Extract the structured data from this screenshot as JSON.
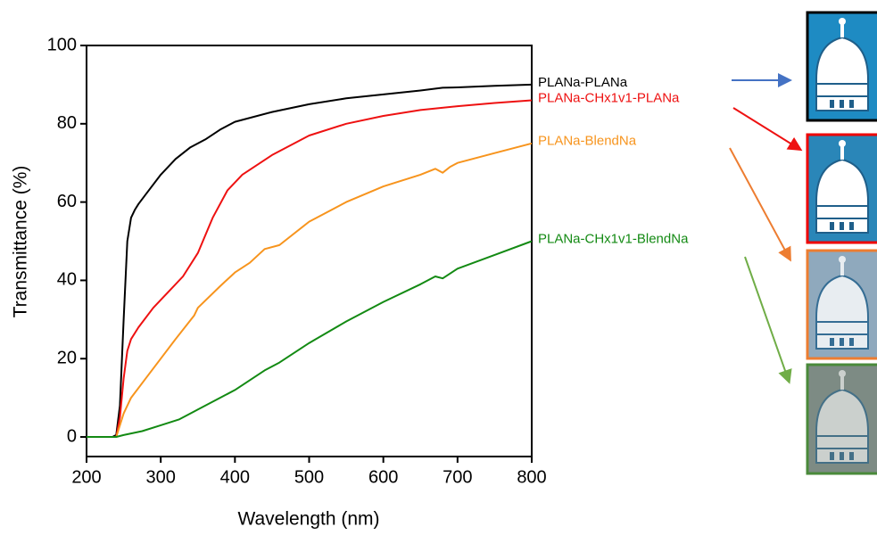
{
  "chart_data": {
    "type": "line",
    "x_label": "Wavelength (nm)",
    "y_label": "Transmittance (%)",
    "xlim": [
      200,
      800
    ],
    "xticks": [
      200,
      300,
      400,
      500,
      600,
      700,
      800
    ],
    "ylim": [
      -5,
      100
    ],
    "yticks": [
      0,
      20,
      40,
      60,
      80,
      100
    ],
    "series": [
      {
        "name": "PLANa-PLANa",
        "color": "#000000",
        "x": [
          200,
          235,
          240,
          245,
          250,
          255,
          260,
          265,
          270,
          280,
          300,
          320,
          340,
          360,
          380,
          400,
          450,
          500,
          550,
          600,
          650,
          680,
          700,
          750,
          800
        ],
        "values": [
          0,
          0,
          0.5,
          8,
          30,
          50,
          56,
          58,
          59.5,
          62,
          67,
          71,
          74,
          76,
          78.5,
          80.5,
          83,
          85,
          86.5,
          87.5,
          88.5,
          89.2,
          89.3,
          89.7,
          90
        ]
      },
      {
        "name": "PLANa-CHx1v1-PLANa",
        "color": "#ee1111",
        "x": [
          200,
          240,
          245,
          250,
          255,
          260,
          270,
          290,
          310,
          330,
          350,
          370,
          390,
          410,
          450,
          500,
          550,
          600,
          650,
          700,
          750,
          800
        ],
        "values": [
          0,
          0,
          5,
          15,
          22,
          25,
          28,
          33,
          37,
          41,
          47,
          56,
          63,
          67,
          72,
          77,
          80,
          82,
          83.5,
          84.5,
          85.3,
          86
        ]
      },
      {
        "name": "PLANa-BlendNa",
        "color": "#f7941d",
        "x": [
          200,
          240,
          245,
          250,
          260,
          280,
          300,
          320,
          345,
          350,
          380,
          400,
          420,
          440,
          460,
          500,
          550,
          600,
          650,
          670,
          680,
          690,
          700,
          750,
          800
        ],
        "values": [
          0,
          0,
          3,
          6,
          10,
          15,
          20,
          25,
          31,
          33,
          38.5,
          42,
          44.5,
          48,
          49,
          55,
          60,
          64,
          67,
          68.5,
          67.5,
          69,
          70,
          72.5,
          75
        ]
      },
      {
        "name": "PLANa-CHx1v1-BlendNa",
        "color": "#138a13",
        "x": [
          200,
          240,
          250,
          275,
          300,
          325,
          345,
          350,
          400,
          440,
          460,
          500,
          550,
          600,
          650,
          670,
          680,
          700,
          750,
          800
        ],
        "values": [
          0,
          0,
          0.5,
          1.5,
          3,
          4.5,
          6.5,
          7,
          12,
          17,
          19,
          24,
          29.5,
          34.5,
          39,
          41,
          40.5,
          43,
          46.5,
          50
        ]
      }
    ]
  }
}
